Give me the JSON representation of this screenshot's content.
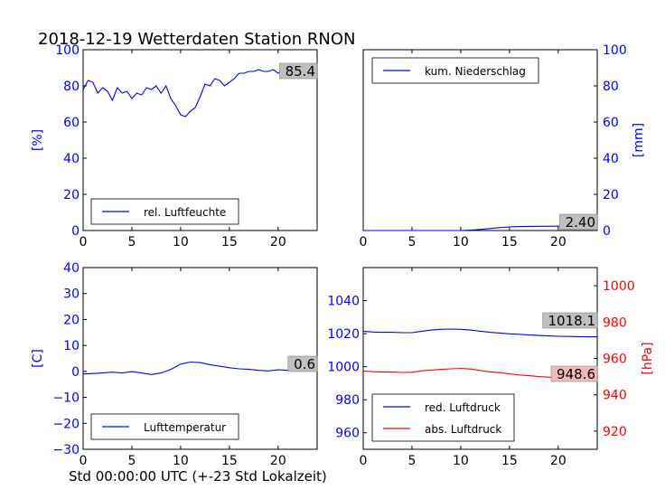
{
  "title": "2018-12-19 Wetterdaten Station RNON",
  "xlabel": "Std 00:00:00 UTC (+-23 Std Lokalzeit)",
  "colors": {
    "blue": "#0000ff",
    "red": "#ff0000",
    "black": "#000000",
    "valueBoxFill": "#bfbfbf",
    "valueBoxRed": "#f4b8b8"
  },
  "chart_data": [
    {
      "id": "humidity",
      "type": "line",
      "ylabel": "[%]",
      "xlim": [
        0,
        24
      ],
      "ylim": [
        0,
        100
      ],
      "xticks": [
        "0",
        "5",
        "10",
        "15",
        "20"
      ],
      "yticks": [
        "0",
        "20",
        "40",
        "60",
        "80",
        "100"
      ],
      "legend": "rel. Luftfeuchte",
      "legend_position": "lower-left",
      "value_label": "85.4",
      "series": [
        {
          "name": "rel. Luftfeuchte",
          "x": [
            0,
            0.5,
            1,
            1.5,
            2,
            2.5,
            3,
            3.5,
            4,
            4.5,
            5,
            5.5,
            6,
            6.5,
            7,
            7.5,
            8,
            8.5,
            9,
            9.5,
            10,
            10.5,
            11,
            11.5,
            12,
            12.5,
            13,
            13.5,
            14,
            14.5,
            15,
            15.5,
            16,
            16.5,
            17,
            17.5,
            18,
            18.5,
            19,
            19.5,
            20,
            20.5,
            21,
            21.5,
            22,
            22.5,
            23,
            23.5,
            24
          ],
          "y": [
            78,
            83,
            82,
            76,
            79,
            77,
            72,
            79,
            76,
            77,
            73,
            76,
            75,
            79,
            78,
            80,
            76,
            80,
            73,
            69,
            64,
            63,
            66,
            68,
            74,
            81,
            80,
            84,
            83,
            80,
            82,
            84,
            87,
            87,
            88,
            88,
            89,
            88,
            88,
            89,
            87,
            89,
            88,
            88,
            86,
            88,
            87,
            86,
            85
          ]
        }
      ]
    },
    {
      "id": "precip",
      "type": "line",
      "ylabel": "[mm]",
      "xlim": [
        0,
        24
      ],
      "ylim": [
        0,
        100
      ],
      "xticks": [
        "0",
        "5",
        "10",
        "15",
        "20"
      ],
      "yticks": [
        "0",
        "20",
        "40",
        "60",
        "80",
        "100"
      ],
      "legend": "kum. Niederschlag",
      "legend_position": "upper-left",
      "value_label": "2.40",
      "series": [
        {
          "name": "kum. Niederschlag",
          "x": [
            0,
            10,
            11,
            12,
            13,
            14,
            15,
            16,
            17,
            18,
            20,
            22,
            24
          ],
          "y": [
            0,
            0,
            0.2,
            0.6,
            1.1,
            1.6,
            2.0,
            2.2,
            2.3,
            2.35,
            2.4,
            2.4,
            2.4
          ]
        }
      ]
    },
    {
      "id": "temperature",
      "type": "line",
      "ylabel": "[C]",
      "xlim": [
        0,
        24
      ],
      "ylim": [
        -30,
        40
      ],
      "xticks": [
        "0",
        "5",
        "10",
        "15",
        "20"
      ],
      "yticks": [
        "−30",
        "−20",
        "−10",
        "0",
        "10",
        "20",
        "30",
        "40"
      ],
      "legend": "Lufttemperatur",
      "legend_position": "lower-left",
      "value_label": "0.6",
      "series": [
        {
          "name": "Lufttemperatur",
          "x": [
            0,
            1,
            2,
            3,
            4,
            5,
            6,
            7,
            8,
            9,
            10,
            11,
            12,
            13,
            14,
            15,
            16,
            17,
            18,
            19,
            20,
            21,
            22,
            23,
            24
          ],
          "y": [
            -1.0,
            -0.8,
            -0.6,
            -0.3,
            -0.6,
            -0.1,
            -0.6,
            -1.2,
            -0.6,
            0.8,
            2.8,
            3.6,
            3.4,
            2.6,
            2.0,
            1.4,
            1.0,
            0.8,
            0.4,
            0.2,
            0.6,
            0.4,
            0.5,
            0.6,
            0.6
          ]
        }
      ]
    },
    {
      "id": "pressure",
      "type": "line",
      "ylim": [
        950,
        1060
      ],
      "ylim_right": [
        910,
        1010
      ],
      "ylabel_right": "[hPa]",
      "xlim": [
        0,
        24
      ],
      "xticks": [
        "0",
        "5",
        "10",
        "15",
        "20"
      ],
      "yticks": [
        "960",
        "980",
        "1000",
        "1020",
        "1040"
      ],
      "yticks_right": [
        "920",
        "940",
        "960",
        "980",
        "1000"
      ],
      "legend_position": "lower-left",
      "value_label_red": "1018.1",
      "value_label_abs": "948.6",
      "series": [
        {
          "name": "red. Luftdruck",
          "axis": "left",
          "color": "blue",
          "x": [
            0,
            1,
            2,
            3,
            4,
            5,
            6,
            7,
            8,
            9,
            10,
            11,
            12,
            13,
            14,
            15,
            16,
            17,
            18,
            19,
            20,
            21,
            22,
            23,
            24
          ],
          "y": [
            1021.5,
            1021.0,
            1020.8,
            1020.8,
            1020.6,
            1020.6,
            1021.5,
            1022.2,
            1022.6,
            1022.8,
            1022.6,
            1022.2,
            1021.5,
            1020.8,
            1020.4,
            1019.9,
            1019.6,
            1019.2,
            1018.9,
            1018.6,
            1018.4,
            1018.3,
            1018.2,
            1018.1,
            1018.1
          ]
        },
        {
          "name": "abs. Luftdruck",
          "axis": "right",
          "color": "red",
          "x": [
            0,
            1,
            2,
            3,
            4,
            5,
            6,
            7,
            8,
            9,
            10,
            11,
            12,
            13,
            14,
            15,
            16,
            17,
            18,
            19,
            20,
            21,
            22,
            23,
            24
          ],
          "y": [
            953.1,
            952.7,
            952.5,
            952.5,
            952.3,
            952.4,
            953.2,
            953.6,
            954.0,
            954.3,
            954.5,
            954.2,
            953.4,
            952.6,
            952.2,
            951.5,
            950.9,
            950.5,
            950.0,
            949.7,
            949.4,
            949.1,
            948.9,
            948.7,
            948.6
          ]
        }
      ]
    }
  ]
}
